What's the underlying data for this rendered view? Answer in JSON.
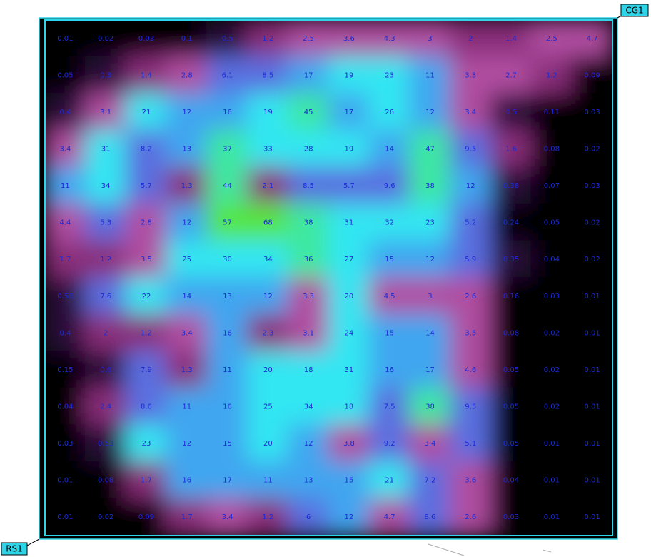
{
  "labels": {
    "top_right": "CG1",
    "bottom_left": "RS1"
  },
  "grid": {
    "values": [
      [
        0.01,
        0.02,
        0.03,
        0.1,
        0.5,
        1.2,
        2.5,
        3.6,
        4.3,
        3.0,
        2.0,
        1.4,
        2.5,
        4.7
      ],
      [
        0.05,
        0.3,
        1.4,
        2.8,
        6.1,
        8.5,
        17,
        19,
        23,
        11,
        3.3,
        2.7,
        1.2,
        0.09
      ],
      [
        0.4,
        3.1,
        21,
        12,
        16,
        19,
        45,
        17,
        26,
        12,
        3.4,
        0.5,
        0.11,
        0.03
      ],
      [
        3.4,
        31,
        8.2,
        13,
        37,
        33,
        28,
        19,
        14,
        47,
        9.5,
        1.6,
        0.08,
        0.02
      ],
      [
        11,
        34,
        5.7,
        1.3,
        44,
        2.1,
        8.5,
        5.7,
        9.6,
        38,
        12,
        0.38,
        0.07,
        0.03
      ],
      [
        4.4,
        5.3,
        2.8,
        12,
        57,
        68,
        38,
        31,
        32,
        23,
        5.2,
        0.24,
        0.05,
        0.02
      ],
      [
        1.7,
        1.2,
        3.5,
        25,
        30,
        34,
        36,
        27,
        15,
        12,
        5.9,
        0.35,
        0.04,
        0.02
      ],
      [
        0.58,
        7.6,
        22,
        14,
        13,
        12,
        3.3,
        20,
        4.5,
        3.0,
        2.6,
        0.16,
        0.03,
        0.01
      ],
      [
        0.4,
        2.0,
        1.2,
        3.4,
        16,
        2.3,
        3.1,
        24,
        15,
        14,
        3.5,
        0.08,
        0.02,
        0.01
      ],
      [
        0.15,
        0.6,
        7.9,
        1.3,
        11,
        20,
        18,
        31,
        16,
        17,
        4.6,
        0.05,
        0.02,
        0.01
      ],
      [
        0.04,
        2.4,
        8.6,
        11,
        16,
        25,
        34,
        18,
        7.5,
        38,
        9.5,
        0.05,
        0.02,
        0.01
      ],
      [
        0.03,
        0.53,
        23,
        12,
        15,
        20,
        12,
        3.8,
        9.2,
        3.4,
        5.1,
        0.05,
        0.01,
        0.01
      ],
      [
        0.01,
        0.08,
        1.7,
        16,
        17,
        11,
        13,
        15,
        21,
        7.2,
        3.6,
        0.04,
        0.01,
        0.01
      ],
      [
        0.01,
        0.02,
        0.09,
        1.7,
        3.4,
        1.2,
        6.0,
        12,
        4.7,
        8.6,
        2.6,
        0.03,
        0.01,
        0.01
      ]
    ]
  }
}
